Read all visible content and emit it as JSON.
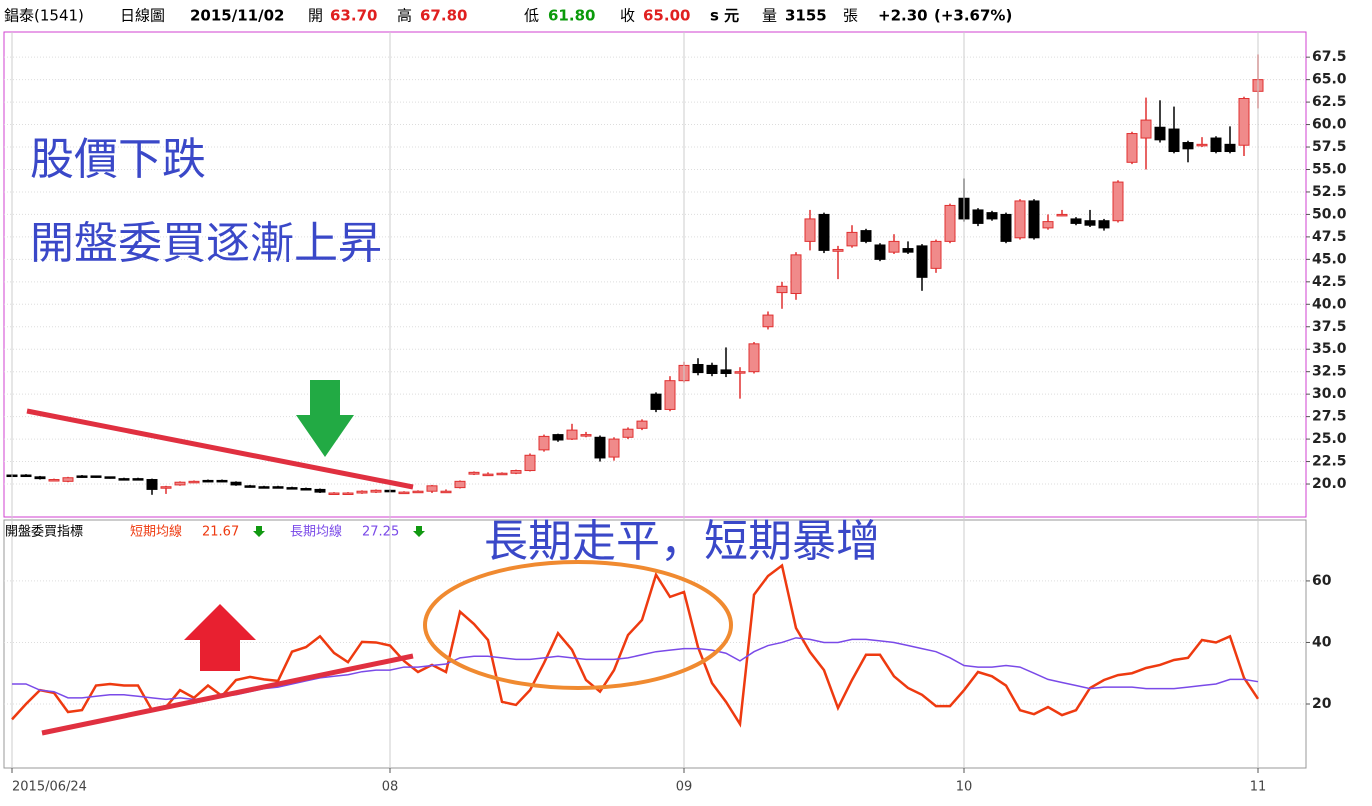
{
  "header": {
    "name": "錩泰(1541)",
    "period": "日線圖",
    "date": "2015/11/02",
    "open_label": "開",
    "open": "63.70",
    "high_label": "高",
    "high": "67.80",
    "low_label": "低",
    "low": "61.80",
    "close_label": "收",
    "close": "65.00",
    "unit": "s 元",
    "volume_label": "量",
    "volume": "3155",
    "volume_unit": "張",
    "change": "+2.30",
    "change_pct": "(+3.67%)"
  },
  "chart_data": [
    {
      "type": "candlestick",
      "annotations": [
        "股價下跌",
        "開盤委買逐漸上昇"
      ],
      "up_color": "#e03030",
      "up_fill": "#f08a8a",
      "down_color": "#000000",
      "open": [
        21.0,
        21.0,
        20.8,
        20.5,
        20.3,
        20.9,
        20.9,
        20.8,
        20.6,
        20.6,
        20.5,
        19.6,
        19.9,
        20.3,
        20.4,
        20.4,
        20.2,
        19.8,
        19.7,
        19.7,
        19.6,
        19.5,
        19.4,
        19.0,
        19.0,
        19.0,
        19.1,
        19.3,
        19.1,
        19.2,
        19.2,
        19.2,
        19.6,
        21.1,
        21.1,
        21.2,
        21.2,
        21.5,
        23.8,
        25.5,
        25.0,
        25.5,
        25.2,
        23.0,
        25.2,
        26.2,
        30.0,
        28.3,
        31.5,
        33.3,
        33.2,
        32.7,
        32.5,
        32.5,
        37.5,
        41.3,
        41.2,
        47.0,
        50.0,
        45.9,
        46.5,
        48.2,
        46.6,
        45.8,
        46.2,
        46.5,
        44.0,
        47.0,
        51.8,
        50.5,
        50.2,
        50.0,
        47.4,
        51.5,
        48.5,
        50.0,
        49.5,
        49.3,
        49.3,
        49.3,
        55.8,
        58.5,
        59.7,
        59.5,
        58.0,
        57.8,
        58.5,
        57.8,
        57.7,
        63.7
      ],
      "high": [
        21.1,
        21.1,
        20.9,
        20.6,
        20.8,
        21.0,
        20.9,
        20.8,
        20.7,
        20.7,
        20.6,
        19.8,
        20.3,
        20.4,
        20.5,
        20.5,
        20.3,
        19.9,
        19.8,
        19.8,
        19.7,
        19.6,
        19.5,
        19.1,
        19.1,
        19.3,
        19.4,
        19.4,
        19.2,
        19.3,
        19.9,
        19.4,
        20.4,
        21.4,
        21.3,
        21.3,
        21.6,
        23.4,
        25.5,
        25.6,
        26.7,
        25.8,
        25.4,
        25.2,
        26.3,
        27.2,
        30.2,
        32.0,
        33.6,
        34.0,
        33.5,
        35.2,
        33.0,
        35.8,
        39.2,
        42.5,
        45.8,
        50.5,
        50.2,
        46.5,
        48.8,
        48.4,
        46.8,
        47.8,
        47.0,
        46.7,
        47.2,
        51.2,
        54.0,
        50.7,
        50.4,
        50.2,
        51.7,
        51.7,
        50.0,
        50.5,
        49.7,
        50.5,
        49.5,
        53.8,
        59.2,
        63.0,
        62.7,
        62.0,
        58.2,
        58.6,
        58.7,
        59.8,
        63.1,
        67.8
      ],
      "low": [
        20.9,
        20.9,
        20.5,
        20.4,
        20.2,
        20.7,
        20.7,
        20.6,
        20.4,
        20.4,
        18.8,
        18.9,
        19.8,
        20.2,
        20.2,
        20.2,
        19.8,
        19.6,
        19.5,
        19.5,
        19.4,
        19.3,
        19.0,
        18.9,
        18.9,
        18.9,
        19.0,
        19.1,
        19.0,
        19.1,
        19.0,
        19.0,
        19.5,
        21.0,
        21.0,
        21.1,
        21.1,
        21.4,
        23.6,
        24.7,
        24.9,
        25.2,
        22.5,
        22.6,
        25.0,
        26.0,
        28.0,
        28.1,
        31.3,
        32.1,
        32.0,
        31.9,
        29.5,
        32.3,
        37.2,
        39.5,
        40.5,
        46.0,
        45.7,
        42.8,
        46.3,
        46.8,
        44.8,
        45.6,
        45.6,
        41.5,
        43.5,
        46.8,
        49.2,
        48.7,
        49.3,
        46.8,
        47.2,
        47.2,
        48.3,
        49.8,
        48.8,
        48.6,
        48.2,
        49.1,
        55.6,
        55.0,
        58.0,
        56.8,
        55.8,
        57.5,
        56.8,
        56.8,
        56.5,
        61.8
      ],
      "close": [
        20.9,
        20.9,
        20.6,
        20.5,
        20.7,
        20.8,
        20.8,
        20.7,
        20.5,
        20.5,
        19.4,
        19.7,
        20.2,
        20.3,
        20.3,
        20.3,
        19.9,
        19.7,
        19.6,
        19.6,
        19.5,
        19.4,
        19.1,
        19.0,
        19.0,
        19.2,
        19.3,
        19.2,
        19.1,
        19.2,
        19.8,
        19.2,
        20.3,
        21.3,
        21.1,
        21.2,
        21.5,
        23.2,
        25.3,
        24.9,
        26.0,
        25.5,
        22.9,
        25.0,
        26.1,
        27.0,
        28.3,
        31.5,
        33.2,
        32.4,
        32.3,
        32.3,
        32.5,
        35.6,
        38.8,
        42.0,
        45.5,
        49.5,
        46.0,
        46.1,
        48.0,
        47.0,
        45.0,
        47.0,
        45.8,
        43.0,
        47.0,
        51.0,
        49.5,
        49.0,
        49.5,
        47.0,
        51.5,
        47.4,
        49.2,
        50.0,
        49.0,
        48.8,
        48.5,
        53.6,
        59.0,
        60.5,
        58.3,
        57.0,
        57.3,
        57.8,
        57.0,
        57.0,
        62.9,
        65.0
      ],
      "ylim": [
        16.33,
        70.3
      ],
      "yticks": [
        {
          "value": 20,
          "label": "20.0"
        },
        22.5,
        {
          "value": 25,
          "label": "25.0"
        },
        27.5,
        {
          "value": 30,
          "label": "30.0"
        },
        32.5,
        {
          "value": 35,
          "label": "35.0"
        },
        37.5,
        {
          "value": 40,
          "label": "40.0"
        },
        42.5,
        {
          "value": 45,
          "label": "45.0"
        },
        47.5,
        {
          "value": 50,
          "label": "50.0"
        },
        52.5,
        {
          "value": 55,
          "label": "55.0"
        },
        57.5,
        {
          "value": 60,
          "label": "60.0"
        },
        62.5,
        {
          "value": 65,
          "label": "65.0"
        },
        67.5
      ],
      "grid": true
    },
    {
      "type": "line",
      "title": "開盤委買指標",
      "annotations": [
        "長期走平，短期暴增"
      ],
      "categories": [
        "2015/06/24",
        null,
        null,
        null,
        null,
        null,
        null,
        null,
        null,
        null,
        null,
        null,
        null,
        null,
        null,
        null,
        null,
        null,
        null,
        null,
        null,
        null,
        null,
        null,
        null,
        null,
        null,
        "08",
        null,
        null,
        null,
        null,
        null,
        null,
        null,
        null,
        null,
        null,
        null,
        null,
        null,
        null,
        null,
        null,
        null,
        null,
        null,
        null,
        "09",
        null,
        null,
        null,
        null,
        null,
        null,
        null,
        null,
        null,
        null,
        null,
        null,
        null,
        null,
        null,
        null,
        null,
        null,
        null,
        "10",
        null,
        null,
        null,
        null,
        null,
        null,
        null,
        null,
        null,
        null,
        null,
        null,
        null,
        null,
        null,
        null,
        null,
        null,
        null,
        null,
        "11"
      ],
      "series": [
        {
          "name": "短期均線",
          "color": "#ee3a10",
          "values": [
            15,
            20,
            24.5,
            23.6,
            17.4,
            18,
            26,
            26.5,
            26,
            26,
            18,
            19,
            24.5,
            22,
            26,
            22.6,
            27.8,
            28.8,
            28,
            27.5,
            37,
            38.5,
            42,
            36.6,
            33.6,
            40.2,
            40,
            39,
            34,
            30.4,
            32.7,
            30.4,
            50,
            46,
            40.8,
            20.7,
            19.7,
            24.5,
            33.3,
            43,
            37.6,
            27.8,
            24,
            31,
            42.4,
            47.3,
            62,
            54.8,
            56.4,
            38.5,
            26.8,
            20.7,
            13.5,
            55.5,
            61.6,
            65,
            44.7,
            36.9,
            31,
            18.7,
            27.8,
            36,
            36,
            29,
            25.2,
            23,
            19.3,
            19.3,
            24.5,
            30.4,
            29,
            26,
            18,
            16.7,
            19,
            16.4,
            18,
            25.2,
            27.8,
            29.4,
            30,
            31.7,
            32.7,
            34.3,
            35,
            40.8,
            40,
            42,
            28.5,
            21.67
          ]
        },
        {
          "name": "長期均線",
          "color": "#7a4ae8",
          "values": [
            26.5,
            26.5,
            24.5,
            24,
            22,
            22,
            22.5,
            23,
            23,
            22.5,
            22,
            21.5,
            22,
            21.5,
            21.8,
            22.5,
            23,
            24,
            25,
            25.5,
            26.5,
            27.5,
            28.5,
            29,
            29.5,
            30.5,
            31,
            31,
            32,
            32,
            32.5,
            33,
            35,
            35.5,
            35.5,
            35,
            34.5,
            34.5,
            35,
            35.5,
            35,
            34.5,
            34.5,
            34.5,
            35,
            36,
            37,
            37.5,
            38,
            38,
            37.5,
            36.5,
            34,
            37,
            39,
            40,
            41.5,
            41,
            40,
            40,
            41,
            41,
            40.5,
            40,
            39,
            38,
            37,
            35,
            32.5,
            32,
            32,
            32.5,
            32,
            30,
            28,
            27,
            26,
            25,
            25.5,
            25.5,
            25.5,
            25,
            25,
            25,
            25.5,
            26,
            26.5,
            28,
            28,
            27.25
          ]
        }
      ],
      "ylim": [
        -0.8,
        79.8
      ],
      "yticks": [
        20,
        40,
        60
      ],
      "grid": true
    }
  ]
}
